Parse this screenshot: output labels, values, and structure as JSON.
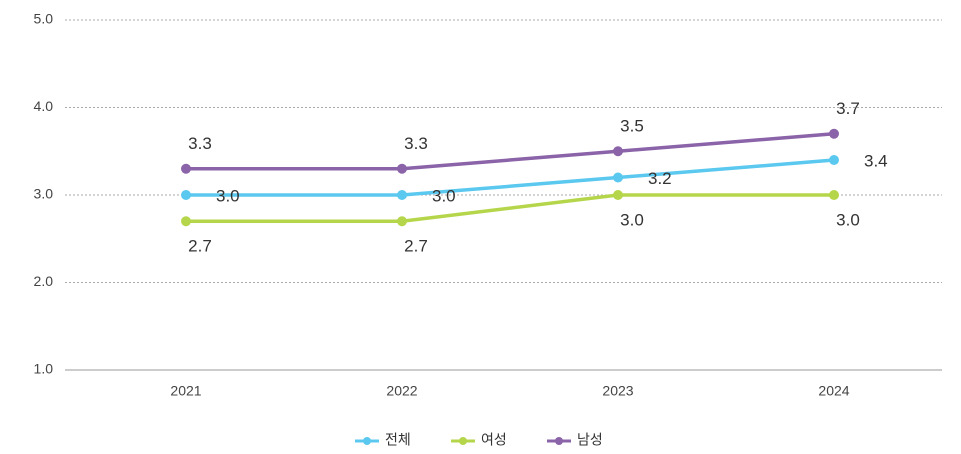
{
  "chart_data": {
    "type": "line",
    "categories": [
      "2021",
      "2022",
      "2023",
      "2024"
    ],
    "series": [
      {
        "name": "전체",
        "color": "#5bc8ef",
        "values": [
          3.0,
          3.0,
          3.2,
          3.4
        ],
        "value_labels": [
          "3.0",
          "3.0",
          "3.2",
          "3.4"
        ]
      },
      {
        "name": "여성",
        "color": "#b5d64a",
        "values": [
          2.7,
          2.7,
          3.0,
          3.0
        ],
        "value_labels": [
          "2.7",
          "2.7",
          "3.0",
          "3.0"
        ]
      },
      {
        "name": "남성",
        "color": "#8b63a8",
        "values": [
          3.3,
          3.3,
          3.5,
          3.7
        ],
        "value_labels": [
          "3.3",
          "3.3",
          "3.5",
          "3.7"
        ]
      }
    ],
    "ylim": [
      1,
      5
    ],
    "yticks": [
      {
        "value": 1,
        "label": "1.0"
      },
      {
        "value": 2,
        "label": "2.0"
      },
      {
        "value": 3,
        "label": "3.0"
      },
      {
        "value": 4,
        "label": "4.0"
      },
      {
        "value": 5,
        "label": "5.0"
      }
    ],
    "grid": true
  }
}
